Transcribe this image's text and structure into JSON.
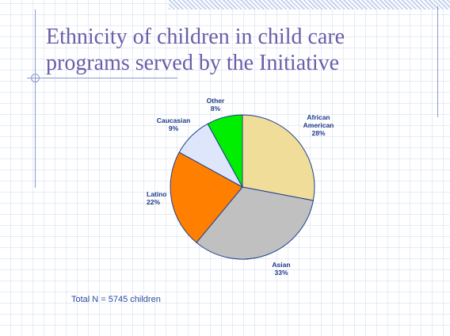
{
  "slide": {
    "title_line1": "Ethnicity of children in child care",
    "title_line2": "programs served by the Initiative",
    "note": "Total N = 5745 children"
  },
  "chart_data": {
    "type": "pie",
    "title": "",
    "slices": [
      {
        "label": [
          "African",
          "American"
        ],
        "percent_label": "28%",
        "value": 28,
        "color": "#efdd99"
      },
      {
        "label": [
          "Asian"
        ],
        "percent_label": "33%",
        "value": 33,
        "color": "#c0c0c0"
      },
      {
        "label": [
          "Latino"
        ],
        "percent_label": "22%",
        "value": 22,
        "color": "#ff8000"
      },
      {
        "label": [
          "Caucasian"
        ],
        "percent_label": "9%",
        "value": 9,
        "color": "#dde6fb"
      },
      {
        "label": [
          "Other"
        ],
        "percent_label": "8%",
        "value": 8,
        "color": "#00ee00"
      }
    ]
  }
}
